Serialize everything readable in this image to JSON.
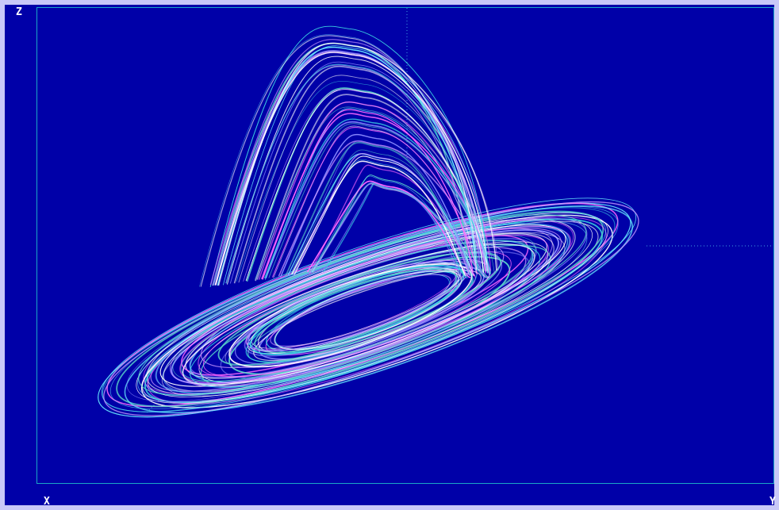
{
  "axes": {
    "z_label": "Z",
    "x_label": "X",
    "y_label": "Y"
  },
  "colors": {
    "background": "#0000a8",
    "frame": "#c8c8f8",
    "plot_border": "#1aa6c6",
    "guide": "#3fa0e0",
    "strokes": [
      "#ffffff",
      "#ff66ff",
      "#66e8ff",
      "#8a8aff",
      "#5ad6c8",
      "#ffffff",
      "#c896ff",
      "#3ad0e0"
    ]
  }
}
